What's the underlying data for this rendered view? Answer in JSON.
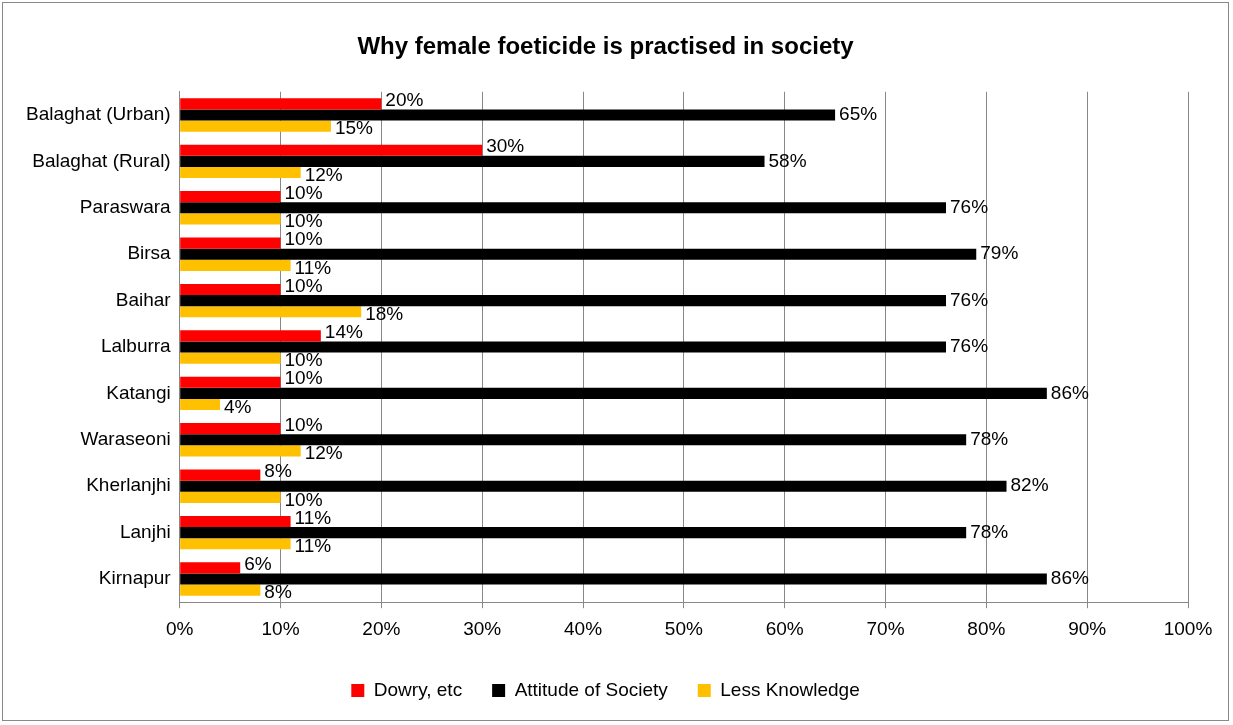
{
  "chart_data": {
    "type": "bar",
    "orientation": "horizontal",
    "title": "Why female foeticide is practised in society",
    "categories": [
      "Balaghat (Urban)",
      "Balaghat (Rural)",
      "Paraswara",
      "Birsa",
      "Baihar",
      "Lalburra",
      "Katangi",
      "Waraseoni",
      "Kherlanjhi",
      "Lanjhi",
      "Kirnapur"
    ],
    "series": [
      {
        "name": "Dowry, etc",
        "color": "#ff0000",
        "values": [
          20,
          30,
          10,
          10,
          10,
          14,
          10,
          10,
          8,
          11,
          6
        ],
        "value_labels": [
          "20%",
          "30%",
          "10%",
          "10%",
          "10%",
          "14%",
          "10%",
          "10%",
          "8%",
          "11%",
          "6%"
        ]
      },
      {
        "name": "Attitude of Society",
        "color": "#000000",
        "values": [
          65,
          58,
          76,
          79,
          76,
          76,
          86,
          78,
          82,
          78,
          86
        ],
        "value_labels": [
          "65%",
          "58%",
          "76%",
          "79%",
          "76%",
          "76%",
          "86%",
          "78%",
          "82%",
          "78%",
          "86%"
        ]
      },
      {
        "name": "Less Knowledge",
        "color": "#ffc000",
        "values": [
          15,
          12,
          10,
          11,
          18,
          10,
          4,
          12,
          10,
          11,
          8
        ],
        "value_labels": [
          "15%",
          "12%",
          "10%",
          "11%",
          "18%",
          "10%",
          "4%",
          "12%",
          "10%",
          "11%",
          "8%"
        ]
      }
    ],
    "xlim": [
      0,
      100
    ],
    "xticks": [
      {
        "value": 0,
        "label": "0%"
      },
      {
        "value": 10,
        "label": "10%"
      },
      {
        "value": 20,
        "label": "20%"
      },
      {
        "value": 30,
        "label": "30%"
      },
      {
        "value": 40,
        "label": "40%"
      },
      {
        "value": 50,
        "label": "50%"
      },
      {
        "value": 60,
        "label": "60%"
      },
      {
        "value": 70,
        "label": "70%"
      },
      {
        "value": 80,
        "label": "80%"
      },
      {
        "value": 90,
        "label": "90%"
      },
      {
        "value": 100,
        "label": "100%"
      }
    ],
    "grid": "x",
    "legend": "bottom"
  }
}
